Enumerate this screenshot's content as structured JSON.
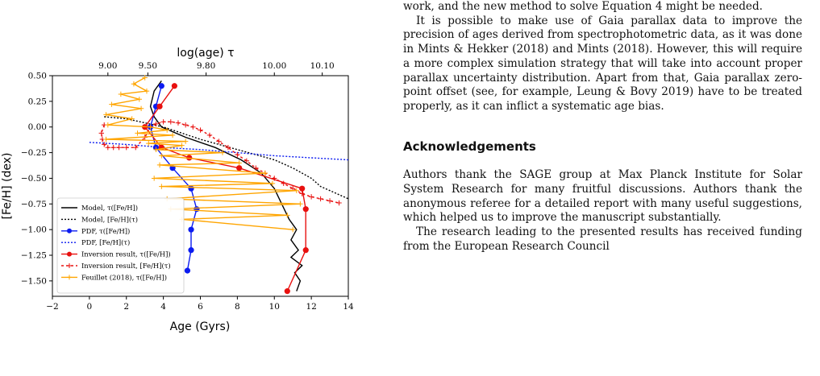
{
  "chart_data": {
    "type": "line",
    "xlabel": "Age (Gyrs)",
    "ylabel": "[Fe/H] (dex)",
    "top_axis_label": "log(age) τ",
    "xlim": [
      -2,
      14
    ],
    "ylim": [
      -1.65,
      0.5
    ],
    "x_ticks": [
      -2,
      0,
      2,
      4,
      6,
      8,
      10,
      12,
      14
    ],
    "x_tick_labels": [
      "−2",
      "0",
      "2",
      "4",
      "6",
      "8",
      "10",
      "12",
      "14"
    ],
    "y_ticks": [
      0.5,
      0.25,
      0,
      -0.25,
      -0.5,
      -0.75,
      -1,
      -1.25,
      -1.5
    ],
    "y_tick_labels": [
      "0.50",
      "0.25",
      "0.00",
      "−0.25",
      "−0.50",
      "−0.75",
      "−1.00",
      "−1.25",
      "−1.50"
    ],
    "top_ticks": [
      1.0,
      3.16,
      6.31,
      10.0,
      12.59
    ],
    "top_tick_labels": [
      "9.00",
      "9.50",
      "9.80",
      "10.00",
      "10.10"
    ],
    "legend_position": "lower-left",
    "series": [
      {
        "name": "Model, τ([Fe/H])",
        "color": "#000000",
        "dash": "",
        "marker": "none",
        "x": [
          3.9,
          3.5,
          3.3,
          3.5,
          3.9,
          5.2,
          6.8,
          8.2,
          9.3,
          10.0,
          10.4,
          10.8,
          11.2,
          10.9,
          11.3,
          10.9,
          11.5,
          11.1,
          11.4,
          11.2
        ],
        "y": [
          0.45,
          0.35,
          0.2,
          0.1,
          0.0,
          -0.1,
          -0.2,
          -0.32,
          -0.45,
          -0.6,
          -0.75,
          -0.9,
          -1.0,
          -1.1,
          -1.2,
          -1.27,
          -1.35,
          -1.42,
          -1.5,
          -1.6
        ]
      },
      {
        "name": "Model, [Fe/H](τ)",
        "color": "#000000",
        "dash": "2,2",
        "marker": "none",
        "x": [
          0.8,
          2,
          4,
          6,
          8,
          10,
          11,
          12,
          12.5,
          13,
          13.5,
          14
        ],
        "y": [
          0.1,
          0.08,
          0.0,
          -0.12,
          -0.22,
          -0.32,
          -0.4,
          -0.5,
          -0.58,
          -0.62,
          -0.66,
          -0.7
        ]
      },
      {
        "name": "PDF, τ([Fe/H])",
        "color": "#0b1bf0",
        "dash": "",
        "marker": "circle",
        "x": [
          3.9,
          3.6,
          3.3,
          3.6,
          4.5,
          5.5,
          5.8,
          5.5,
          5.5,
          5.3
        ],
        "y": [
          0.4,
          0.2,
          0.0,
          -0.2,
          -0.4,
          -0.6,
          -0.8,
          -1.0,
          -1.2,
          -1.4
        ]
      },
      {
        "name": "PDF, [Fe/H](τ)",
        "color": "#0b1bf0",
        "dash": "2,2",
        "marker": "none",
        "x": [
          0.0,
          2,
          4,
          6,
          8,
          10,
          12,
          14
        ],
        "y": [
          -0.15,
          -0.17,
          -0.2,
          -0.22,
          -0.25,
          -0.28,
          -0.3,
          -0.32
        ]
      },
      {
        "name": "Inversion result, τ([Fe/H])",
        "color": "#e8100f",
        "dash": "",
        "marker": "circle",
        "x": [
          4.6,
          3.8,
          3.0,
          3.9,
          5.4,
          8.1,
          11.5,
          11.7,
          11.7,
          10.7
        ],
        "y": [
          0.4,
          0.2,
          0.0,
          -0.2,
          -0.3,
          -0.4,
          -0.6,
          -0.8,
          -1.2,
          -1.6
        ]
      },
      {
        "name": "Inversion result, [Fe/H](τ)",
        "color": "#e8100f",
        "dash": "3,3",
        "marker": "plus",
        "x": [
          0.8,
          0.65,
          0.7,
          0.8,
          1.0,
          1.3,
          1.6,
          2.0,
          2.5,
          3.0,
          3.3,
          3.6,
          4.0,
          4.4,
          4.8,
          5.2,
          5.6,
          6.0,
          6.5,
          7.0,
          7.5,
          8.0,
          8.5,
          9.0,
          9.5,
          10.0,
          10.5,
          11.0,
          11.5,
          12.0,
          12.5,
          13.0,
          13.5
        ],
        "y": [
          0.02,
          -0.06,
          -0.12,
          -0.17,
          -0.2,
          -0.2,
          -0.2,
          -0.2,
          -0.2,
          -0.1,
          0.0,
          0.03,
          0.05,
          0.05,
          0.04,
          0.02,
          0.0,
          -0.03,
          -0.08,
          -0.14,
          -0.2,
          -0.27,
          -0.33,
          -0.4,
          -0.45,
          -0.5,
          -0.55,
          -0.6,
          -0.65,
          -0.68,
          -0.7,
          -0.72,
          -0.74
        ]
      },
      {
        "name": "Feuillet (2018), τ([Fe/H])",
        "color": "#ffa500",
        "dash": "",
        "marker": "plus",
        "x": [
          3.0,
          2.4,
          3.1,
          1.7,
          2.7,
          1.2,
          2.8,
          0.9,
          2.3,
          1.0,
          3.3,
          4.2,
          2.6,
          4.5,
          0.9,
          5.2,
          3.2,
          5.0,
          3.6,
          7.2,
          3.9,
          8.1,
          3.8,
          9.5,
          3.5,
          9.9,
          3.9,
          11.2,
          4.2,
          11.4,
          4.4,
          10.7,
          5.0,
          11.0
        ],
        "y": [
          0.48,
          0.42,
          0.35,
          0.32,
          0.27,
          0.22,
          0.18,
          0.12,
          0.08,
          0.02,
          0.0,
          -0.03,
          -0.06,
          -0.08,
          -0.12,
          -0.14,
          -0.16,
          -0.18,
          -0.22,
          -0.25,
          -0.28,
          -0.35,
          -0.37,
          -0.45,
          -0.5,
          -0.55,
          -0.58,
          -0.62,
          -0.7,
          -0.75,
          -0.8,
          -0.86,
          -0.9,
          -1.0
        ]
      }
    ]
  },
  "text": {
    "p1": "work, and the new method to solve Equation 4 might be needed.",
    "p2": "It is possible to make use of Gaia parallax data to improve the precision of ages derived from spectrophotometric data, as it was done in Mints & Hekker (2018) and Mints (2018). However, this will require a more complex simulation strategy that will take into account proper parallax uncertainty distribution. Apart from that, Gaia parallax zero-point offset (see, for example, Leung & Bovy 2019) have to be treated properly, as it can inflict a systematic age bias.",
    "heading": "Acknowledgements",
    "p3": "Authors thank the SAGE group at Max Planck Institute for Solar System Research for many fruitful discussions. Authors thank the anonymous referee for a detailed report with many useful suggestions, which helped us to improve the manuscript substantially.",
    "p4": "The research leading to the presented results has received funding from the European Research Council"
  }
}
